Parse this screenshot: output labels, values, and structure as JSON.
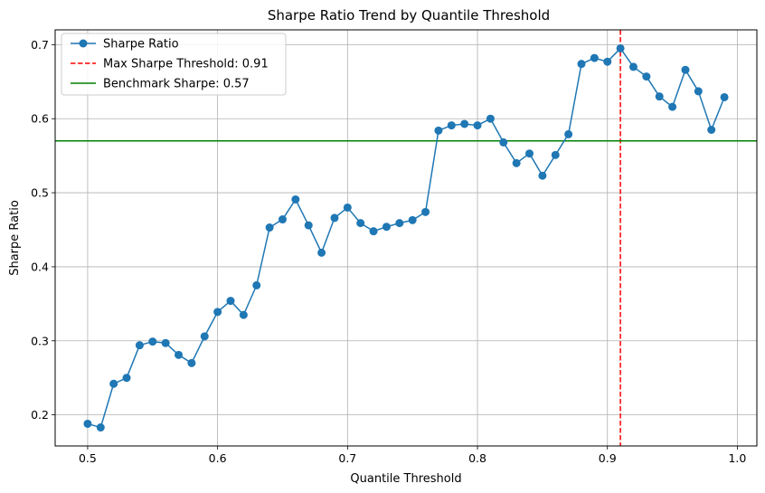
{
  "chart_data": {
    "type": "line",
    "title": "Sharpe Ratio Trend by Quantile Threshold",
    "xlabel": "Quantile Threshold",
    "ylabel": "Sharpe Ratio",
    "xlim": [
      0.475,
      1.015
    ],
    "ylim": [
      0.158,
      0.72
    ],
    "grid": true,
    "legend_position": "top-left",
    "x_ticks": [
      "0.5",
      "0.6",
      "0.7",
      "0.8",
      "0.9",
      "1.0"
    ],
    "y_ticks": [
      "0.2",
      "0.3",
      "0.4",
      "0.5",
      "0.6",
      "0.7"
    ],
    "series": [
      {
        "name": "Sharpe Ratio",
        "color": "#1f77b4",
        "x": [
          0.5,
          0.51,
          0.52,
          0.53,
          0.54,
          0.55,
          0.56,
          0.57,
          0.58,
          0.59,
          0.6,
          0.61,
          0.62,
          0.63,
          0.64,
          0.65,
          0.66,
          0.67,
          0.68,
          0.69,
          0.7,
          0.71,
          0.72,
          0.73,
          0.74,
          0.75,
          0.76,
          0.77,
          0.78,
          0.79,
          0.8,
          0.81,
          0.82,
          0.83,
          0.84,
          0.85,
          0.86,
          0.87,
          0.88,
          0.89,
          0.9,
          0.91,
          0.92,
          0.93,
          0.94,
          0.95,
          0.96,
          0.97,
          0.98,
          0.99
        ],
        "y": [
          0.188,
          0.183,
          0.242,
          0.25,
          0.294,
          0.299,
          0.297,
          0.281,
          0.27,
          0.306,
          0.339,
          0.354,
          0.335,
          0.375,
          0.453,
          0.464,
          0.491,
          0.456,
          0.419,
          0.466,
          0.48,
          0.459,
          0.448,
          0.454,
          0.459,
          0.463,
          0.474,
          0.584,
          0.591,
          0.593,
          0.591,
          0.6,
          0.568,
          0.54,
          0.553,
          0.523,
          0.551,
          0.579,
          0.674,
          0.682,
          0.677,
          0.695,
          0.67,
          0.657,
          0.63,
          0.616,
          0.666,
          0.637,
          0.585,
          0.629
        ]
      }
    ],
    "reference_lines": [
      {
        "name": "Max Sharpe Threshold: 0.91",
        "orientation": "vertical",
        "value": 0.91,
        "color": "#ff0000",
        "style": "dashed"
      },
      {
        "name": "Benchmark Sharpe: 0.57",
        "orientation": "horizontal",
        "value": 0.57,
        "color": "#008000",
        "style": "solid"
      }
    ]
  }
}
